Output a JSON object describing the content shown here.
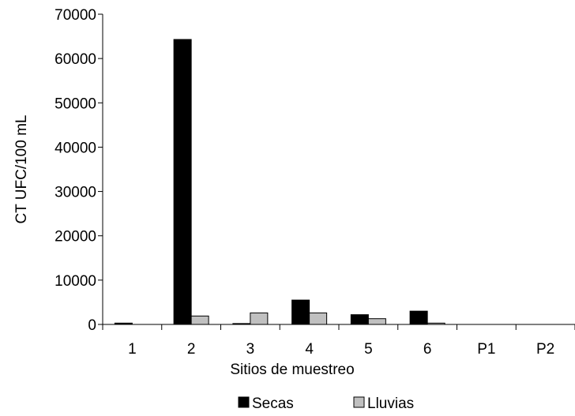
{
  "chart_data": {
    "type": "bar",
    "title": "",
    "xlabel": "Sitios de muestreo",
    "ylabel": "CT UFC/100 mL",
    "categories": [
      "1",
      "2",
      "3",
      "4",
      "5",
      "6",
      "P1",
      "P2"
    ],
    "series": [
      {
        "name": "Secas",
        "color": "#000000",
        "values": [
          300,
          64300,
          200,
          5500,
          2200,
          3000,
          0,
          0
        ]
      },
      {
        "name": "Lluvias",
        "color": "#c0c0c0",
        "values": [
          0,
          1900,
          2600,
          2600,
          1300,
          300,
          0,
          0
        ]
      }
    ],
    "ylim": [
      0,
      70000
    ],
    "yticks": [
      0,
      10000,
      20000,
      30000,
      40000,
      50000,
      60000,
      70000
    ],
    "grid": false,
    "legend_position": "bottom"
  }
}
